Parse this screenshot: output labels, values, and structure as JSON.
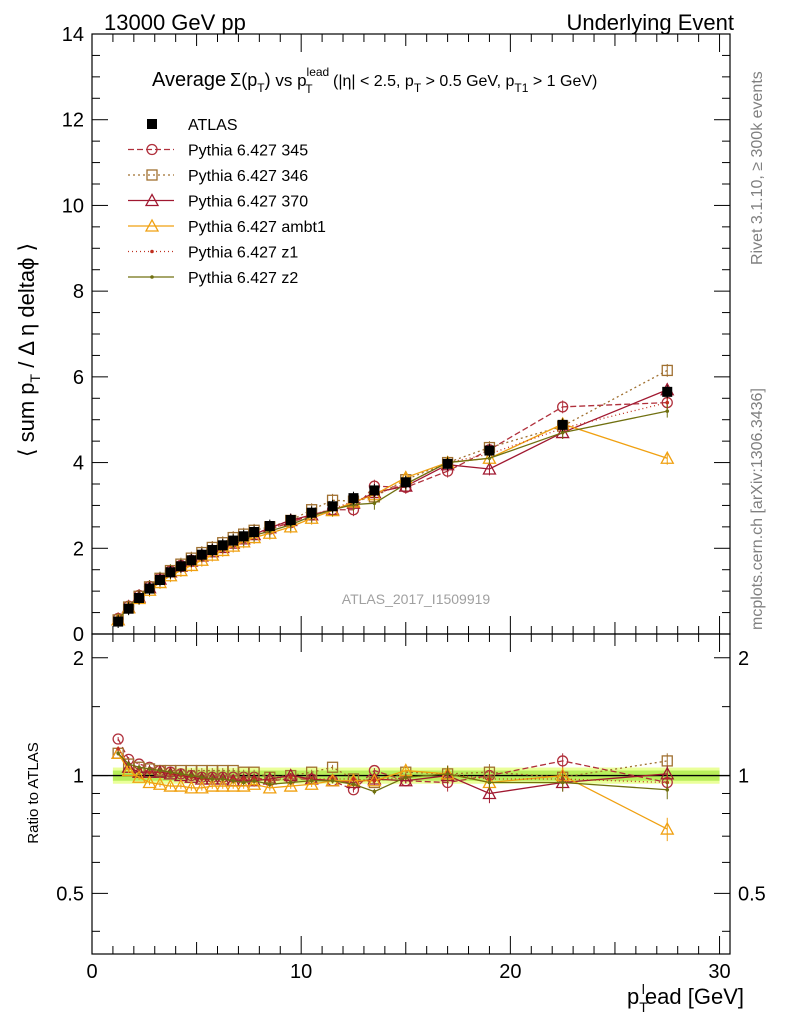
{
  "header": {
    "left": "13000 GeV pp",
    "right": "Underlying Event"
  },
  "side_labels": {
    "rivet": "Rivet 3.1.10, ≥ 300k events",
    "mcplots": "mcplots.cern.ch [arXiv:1306.3436]"
  },
  "chart_data": [
    {
      "type": "line",
      "panel": "main",
      "title": {
        "main": "Average",
        "sigma": "Σ(p",
        "sigma_sub": "T",
        "sigma_close": ")",
        "vs": " vs p",
        "vs_sup": "lead",
        "vs_sub": "T",
        "cut1": " (|η| < 2.5, p",
        "cut1_sub": "T",
        "cut2": " > 0.5 GeV, p",
        "cut2_sub": "T1",
        "cut3": " > 1 GeV)"
      },
      "ylabel": "⟨ sum p_T / Δη deltaϕ ⟩",
      "watermark": "ATLAS_2017_I1509919",
      "xlim": [
        0,
        30.5
      ],
      "ylim": [
        0,
        14
      ],
      "yticks": [
        0,
        2,
        4,
        6,
        8,
        10,
        12,
        14
      ],
      "x": [
        1.25,
        1.75,
        2.25,
        2.75,
        3.25,
        3.75,
        4.25,
        4.75,
        5.25,
        5.75,
        6.25,
        6.75,
        7.25,
        7.75,
        8.5,
        9.5,
        10.5,
        11.5,
        12.5,
        13.5,
        15,
        17,
        19,
        22.5,
        27.5
      ],
      "series": [
        {
          "name": "ATLAS",
          "color": "#000000",
          "marker": "filled-square",
          "dash": "none",
          "values": [
            0.29,
            0.59,
            0.84,
            1.06,
            1.26,
            1.44,
            1.58,
            1.72,
            1.85,
            1.96,
            2.07,
            2.18,
            2.28,
            2.38,
            2.52,
            2.66,
            2.83,
            2.98,
            3.17,
            3.35,
            3.54,
            3.97,
            4.28,
            4.88,
            5.65
          ]
        },
        {
          "name": "Pythia 6.427 345",
          "color": "#b0303c",
          "marker": "open-circle",
          "dash": "6,3",
          "values": [
            0.36,
            0.65,
            0.9,
            1.11,
            1.3,
            1.47,
            1.6,
            1.72,
            1.84,
            1.95,
            2.05,
            2.15,
            2.25,
            2.35,
            2.45,
            2.6,
            2.78,
            2.9,
            2.9,
            3.45,
            3.42,
            3.8,
            4.3,
            5.3,
            5.4
          ]
        },
        {
          "name": "Pythia 6.427 346",
          "color": "#a07030",
          "marker": "open-square",
          "dash": "2,3",
          "values": [
            0.33,
            0.63,
            0.88,
            1.1,
            1.3,
            1.48,
            1.63,
            1.77,
            1.9,
            2.02,
            2.13,
            2.25,
            2.33,
            2.42,
            2.5,
            2.65,
            2.9,
            3.12,
            3.1,
            3.2,
            3.6,
            4.0,
            4.35,
            4.85,
            6.15
          ]
        },
        {
          "name": "Pythia 6.427 370",
          "color": "#a01830",
          "marker": "open-triangle",
          "dash": "none",
          "values": [
            0.33,
            0.62,
            0.86,
            1.08,
            1.28,
            1.45,
            1.58,
            1.7,
            1.82,
            1.92,
            2.02,
            2.12,
            2.22,
            2.32,
            2.48,
            2.65,
            2.78,
            2.9,
            3.05,
            3.3,
            3.45,
            3.95,
            3.85,
            4.7,
            5.7
          ]
        },
        {
          "name": "Pythia 6.427 ambt1",
          "color": "#f0a010",
          "marker": "open-triangle",
          "dash": "none",
          "values": [
            0.33,
            0.61,
            0.83,
            1.02,
            1.2,
            1.36,
            1.48,
            1.6,
            1.72,
            1.84,
            1.95,
            2.05,
            2.15,
            2.25,
            2.35,
            2.5,
            2.7,
            2.88,
            3.08,
            3.25,
            3.65,
            4.0,
            4.1,
            4.9,
            4.1
          ]
        },
        {
          "name": "Pythia 6.427 z1",
          "color": "#c03020",
          "marker": "dot",
          "dash": "1,3",
          "values": [
            0.34,
            0.63,
            0.87,
            1.08,
            1.28,
            1.45,
            1.58,
            1.7,
            1.82,
            1.93,
            2.03,
            2.13,
            2.23,
            2.33,
            2.45,
            2.62,
            2.78,
            2.92,
            3.1,
            3.25,
            3.5,
            4.0,
            4.2,
            4.8,
            5.4
          ]
        },
        {
          "name": "Pythia 6.427 z2",
          "color": "#707010",
          "marker": "dot",
          "dash": "none",
          "values": [
            0.33,
            0.63,
            0.88,
            1.1,
            1.3,
            1.47,
            1.6,
            1.72,
            1.83,
            1.93,
            2.03,
            2.12,
            2.2,
            2.3,
            2.4,
            2.55,
            2.75,
            2.9,
            3.02,
            3.05,
            3.5,
            4.0,
            4.1,
            4.7,
            5.2
          ]
        }
      ]
    },
    {
      "type": "line",
      "panel": "ratio",
      "ylabel": "Ratio to ATLAS",
      "xlabel": "p_T^lead [GeV]",
      "xlabel_parts": {
        "main": "p",
        "sub": "T",
        "sup": "l",
        "rest": "ead [GeV]"
      },
      "xlim": [
        0,
        30.5
      ],
      "ylim": [
        0.35,
        2.3
      ],
      "log_y": true,
      "yticks": [
        0.5,
        1,
        2
      ],
      "xticks": [
        0,
        10,
        20,
        30
      ],
      "reference": 1,
      "band": [
        0.97,
        1.03
      ],
      "series": [
        {
          "name": "Pythia 6.427 345",
          "values": [
            1.24,
            1.1,
            1.07,
            1.05,
            1.03,
            1.02,
            1.01,
            1.0,
            0.99,
            0.99,
            0.99,
            0.99,
            0.99,
            0.99,
            0.97,
            0.98,
            0.98,
            0.97,
            0.92,
            1.03,
            0.97,
            0.96,
            1.0,
            1.09,
            0.96
          ]
        },
        {
          "name": "Pythia 6.427 346",
          "values": [
            1.14,
            1.07,
            1.05,
            1.04,
            1.03,
            1.03,
            1.03,
            1.03,
            1.03,
            1.03,
            1.03,
            1.03,
            1.02,
            1.02,
            0.99,
            1.0,
            1.02,
            1.05,
            0.98,
            0.96,
            1.02,
            1.01,
            1.02,
            0.99,
            1.09
          ]
        },
        {
          "name": "Pythia 6.427 370",
          "values": [
            1.14,
            1.05,
            1.02,
            1.02,
            1.02,
            1.01,
            1.0,
            0.99,
            0.98,
            0.98,
            0.98,
            0.97,
            0.97,
            0.97,
            0.98,
            1.0,
            0.98,
            0.97,
            0.96,
            0.98,
            0.97,
            1.0,
            0.9,
            0.96,
            1.01
          ]
        },
        {
          "name": "Pythia 6.427 ambt1",
          "values": [
            1.14,
            1.03,
            0.99,
            0.96,
            0.95,
            0.94,
            0.94,
            0.93,
            0.93,
            0.94,
            0.94,
            0.94,
            0.94,
            0.95,
            0.93,
            0.94,
            0.95,
            0.97,
            0.97,
            0.97,
            1.03,
            1.01,
            0.96,
            1.0,
            0.73
          ]
        },
        {
          "name": "Pythia 6.427 z1",
          "values": [
            1.17,
            1.07,
            1.04,
            1.02,
            1.02,
            1.01,
            1.0,
            0.99,
            0.98,
            0.98,
            0.98,
            0.98,
            0.98,
            0.98,
            0.97,
            0.99,
            0.98,
            0.98,
            0.98,
            0.97,
            0.99,
            1.01,
            0.98,
            0.98,
            0.96
          ]
        },
        {
          "name": "Pythia 6.427 z2",
          "values": [
            1.14,
            1.07,
            1.05,
            1.04,
            1.03,
            1.02,
            1.01,
            1.0,
            0.99,
            0.98,
            0.98,
            0.97,
            0.96,
            0.97,
            0.95,
            0.96,
            0.97,
            0.97,
            0.95,
            0.91,
            0.99,
            1.01,
            0.96,
            0.96,
            0.92
          ]
        }
      ]
    }
  ]
}
